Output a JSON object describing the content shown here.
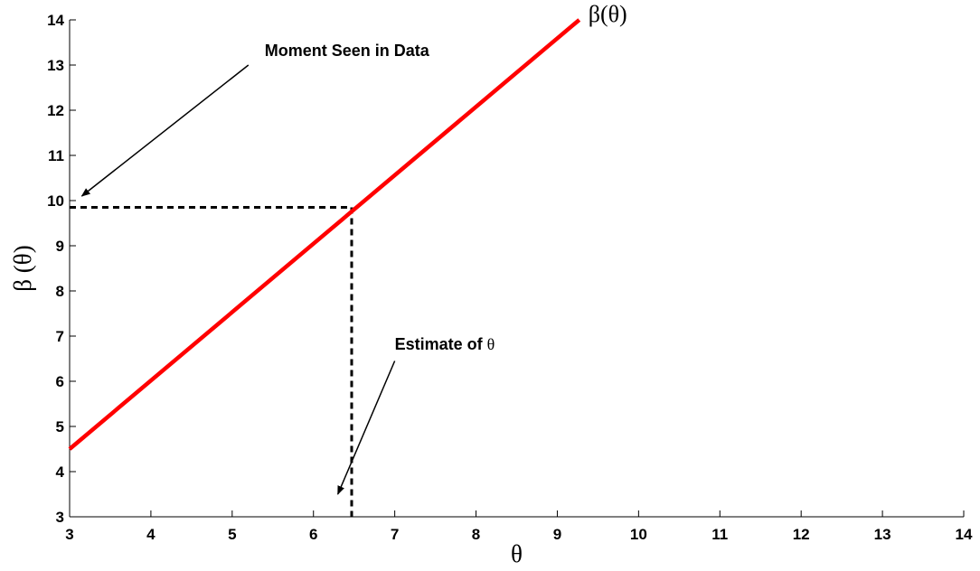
{
  "chart_data": {
    "type": "line",
    "xlabel": "θ",
    "ylabel": "β (θ)",
    "xlim": [
      3,
      14
    ],
    "ylim": [
      3,
      14
    ],
    "xticks": [
      "3",
      "4",
      "5",
      "6",
      "7",
      "8",
      "9",
      "10",
      "11",
      "12",
      "13",
      "14"
    ],
    "yticks": [
      "3",
      "4",
      "5",
      "6",
      "7",
      "8",
      "9",
      "10",
      "11",
      "12",
      "13",
      "14"
    ],
    "grid": false,
    "series": [
      {
        "name": "β(θ)",
        "color": "#ff0000",
        "x": [
          3,
          9.27
        ],
        "y": [
          4.5,
          14
        ]
      }
    ],
    "guide_lines": {
      "style": "dashed",
      "color": "#000000",
      "moment_y": 9.85,
      "estimate_x": 6.47
    },
    "annotations": [
      {
        "id": "moment",
        "text": "Moment Seen in Data",
        "greek": "",
        "text_at": [
          5.4,
          13.2
        ],
        "arrow_from": [
          5.2,
          13.0
        ],
        "arrow_to": [
          3.15,
          10.1
        ]
      },
      {
        "id": "estimate",
        "text": "Estimate of ",
        "greek": "θ",
        "text_at": [
          7.0,
          6.7
        ],
        "arrow_from": [
          7.0,
          6.45
        ],
        "arrow_to": [
          6.3,
          3.5
        ]
      }
    ]
  }
}
